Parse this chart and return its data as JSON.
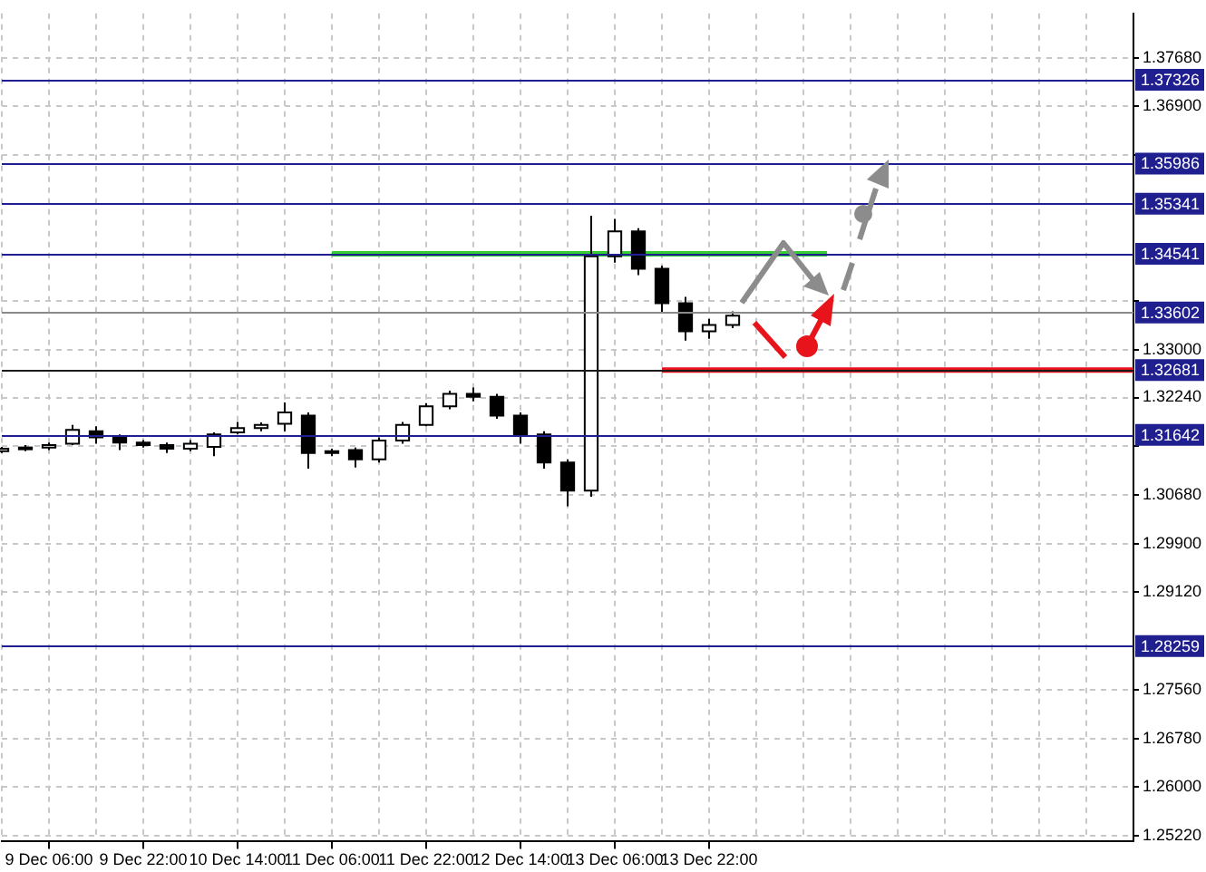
{
  "chart_data": {
    "type": "candlestick",
    "categories": [
      null,
      null,
      "9 Dec 06:00",
      null,
      null,
      null,
      "9 Dec 22:00",
      null,
      null,
      null,
      "10 Dec 14:00",
      null,
      null,
      null,
      "11 Dec 06:00",
      null,
      null,
      null,
      "11 Dec 22:00",
      null,
      null,
      null,
      "12 Dec 14:00",
      null,
      null,
      null,
      "13 Dec 06:00",
      null,
      null,
      null,
      "13 Dec 22:00",
      null,
      null,
      null,
      null,
      null,
      null,
      null,
      null,
      null,
      null,
      null,
      null,
      null,
      null,
      null,
      null,
      null,
      null
    ],
    "ohlc": [
      [
        1.3138,
        1.3145,
        1.3135,
        1.3142
      ],
      [
        1.3142,
        1.3148,
        1.3138,
        1.3144
      ],
      [
        1.3144,
        1.3152,
        1.314,
        1.3148
      ],
      [
        1.315,
        1.318,
        1.3148,
        1.3172
      ],
      [
        1.317,
        1.3178,
        1.315,
        1.316
      ],
      [
        1.316,
        1.3165,
        1.314,
        1.3152
      ],
      [
        1.3152,
        1.3156,
        1.3144,
        1.3148
      ],
      [
        1.3148,
        1.3152,
        1.3135,
        1.3142
      ],
      [
        1.3142,
        1.3156,
        1.3138,
        1.315
      ],
      [
        1.3145,
        1.3168,
        1.313,
        1.3165
      ],
      [
        1.3168,
        1.3185,
        1.3165,
        1.3175
      ],
      [
        1.3175,
        1.3184,
        1.317,
        1.318
      ],
      [
        1.3182,
        1.3216,
        1.317,
        1.32
      ],
      [
        1.3195,
        1.32,
        1.311,
        1.3135
      ],
      [
        1.3135,
        1.3142,
        1.313,
        1.3138
      ],
      [
        1.314,
        1.3144,
        1.3112,
        1.3125
      ],
      [
        1.3125,
        1.316,
        1.312,
        1.3155
      ],
      [
        1.3155,
        1.3185,
        1.315,
        1.318
      ],
      [
        1.318,
        1.3215,
        1.3178,
        1.321
      ],
      [
        1.321,
        1.3235,
        1.3205,
        1.323
      ],
      [
        1.323,
        1.324,
        1.3218,
        1.3225
      ],
      [
        1.3225,
        1.323,
        1.319,
        1.3195
      ],
      [
        1.3195,
        1.32,
        1.315,
        1.3165
      ],
      [
        1.3165,
        1.317,
        1.311,
        1.312
      ],
      [
        1.312,
        1.3125,
        1.305,
        1.3075
      ],
      [
        1.3075,
        1.3515,
        1.3065,
        1.345
      ],
      [
        1.345,
        1.351,
        1.344,
        1.349
      ],
      [
        1.349,
        1.3495,
        1.342,
        1.343
      ],
      [
        1.343,
        1.3435,
        1.336,
        1.3375
      ],
      [
        1.3375,
        1.3385,
        1.3315,
        1.333
      ],
      [
        1.333,
        1.335,
        1.3318,
        1.334
      ],
      [
        1.334,
        1.3362,
        1.3335,
        1.3355
      ],
      null,
      null,
      null,
      null,
      null,
      null,
      null,
      null,
      null,
      null,
      null,
      null,
      null,
      null,
      null,
      null,
      null
    ],
    "series": [
      {
        "type": "line",
        "color": "#33cc33",
        "values": [
          null,
          null,
          null,
          null,
          null,
          null,
          null,
          null,
          null,
          null,
          null,
          null,
          null,
          null,
          1.3454,
          1.3454,
          1.3454,
          1.3454,
          1.3454,
          1.3454,
          1.3454,
          1.3454,
          1.3454,
          1.3454,
          1.3454,
          1.3454,
          1.3454,
          1.3454,
          1.3454,
          1.3454,
          1.3454,
          1.3454,
          1.3454,
          1.3454,
          1.3454,
          1.3454,
          null,
          null,
          null,
          null,
          null,
          null,
          null,
          null,
          null,
          null,
          null,
          null,
          null
        ]
      },
      {
        "type": "line",
        "color": "#e8141c",
        "values": [
          null,
          null,
          null,
          null,
          null,
          null,
          null,
          null,
          null,
          null,
          null,
          null,
          null,
          null,
          null,
          null,
          null,
          null,
          null,
          null,
          null,
          null,
          null,
          null,
          null,
          null,
          null,
          null,
          1.3268,
          1.3268,
          1.3268,
          1.3268,
          1.3268,
          1.3268,
          1.3268,
          1.3268,
          1.3268,
          1.3268,
          1.3268,
          1.3268,
          1.3268,
          1.3268,
          1.3268,
          1.3268,
          1.3268,
          1.3268,
          1.3268,
          1.3268,
          1.3268
        ]
      }
    ],
    "ylim": [
      1.2513,
      1.3839
    ],
    "yticks": [
      {
        "value": 1.3768,
        "label": "1.37680"
      },
      {
        "value": 1.369,
        "label": "1.36900"
      },
      {
        "value": 1.3612,
        "label": null
      },
      {
        "value": 1.3378,
        "label": null
      },
      {
        "value": 1.33,
        "label": "1.33000"
      },
      {
        "value": 1.3224,
        "label": "1.32240"
      },
      {
        "value": 1.3146,
        "label": null
      },
      {
        "value": 1.3068,
        "label": "1.30680"
      },
      {
        "value": 1.299,
        "label": "1.29900"
      },
      {
        "value": 1.2912,
        "label": "1.29120"
      },
      {
        "value": 1.2756,
        "label": "1.27560"
      },
      {
        "value": 1.2678,
        "label": "1.26780"
      },
      {
        "value": 1.26,
        "label": "1.26000"
      },
      {
        "value": 1.2522,
        "label": "1.25220"
      }
    ],
    "ref_lines": [
      {
        "axis": "y",
        "value": 1.37326,
        "label": "1.37326",
        "color": "#1f1f8f"
      },
      {
        "axis": "y",
        "value": 1.35986,
        "label": "1.35986",
        "color": "#1f1f8f"
      },
      {
        "axis": "y",
        "value": 1.35341,
        "label": "1.35341",
        "color": "#1f1f8f"
      },
      {
        "axis": "y",
        "value": 1.34541,
        "label": "1.34541",
        "color": "#1f1f8f"
      },
      {
        "axis": "y",
        "value": 1.33602,
        "label": "1.33602",
        "color": "#8a8a8a"
      },
      {
        "axis": "y",
        "value": 1.32681,
        "label": "1.32681",
        "color": "#1a1a1a"
      },
      {
        "axis": "y",
        "value": 1.31642,
        "label": "1.31642",
        "color": "#1f1f8f"
      },
      {
        "axis": "y",
        "value": 1.28259,
        "label": "1.28259",
        "color": "#1f1f8f"
      }
    ],
    "grid": true
  }
}
